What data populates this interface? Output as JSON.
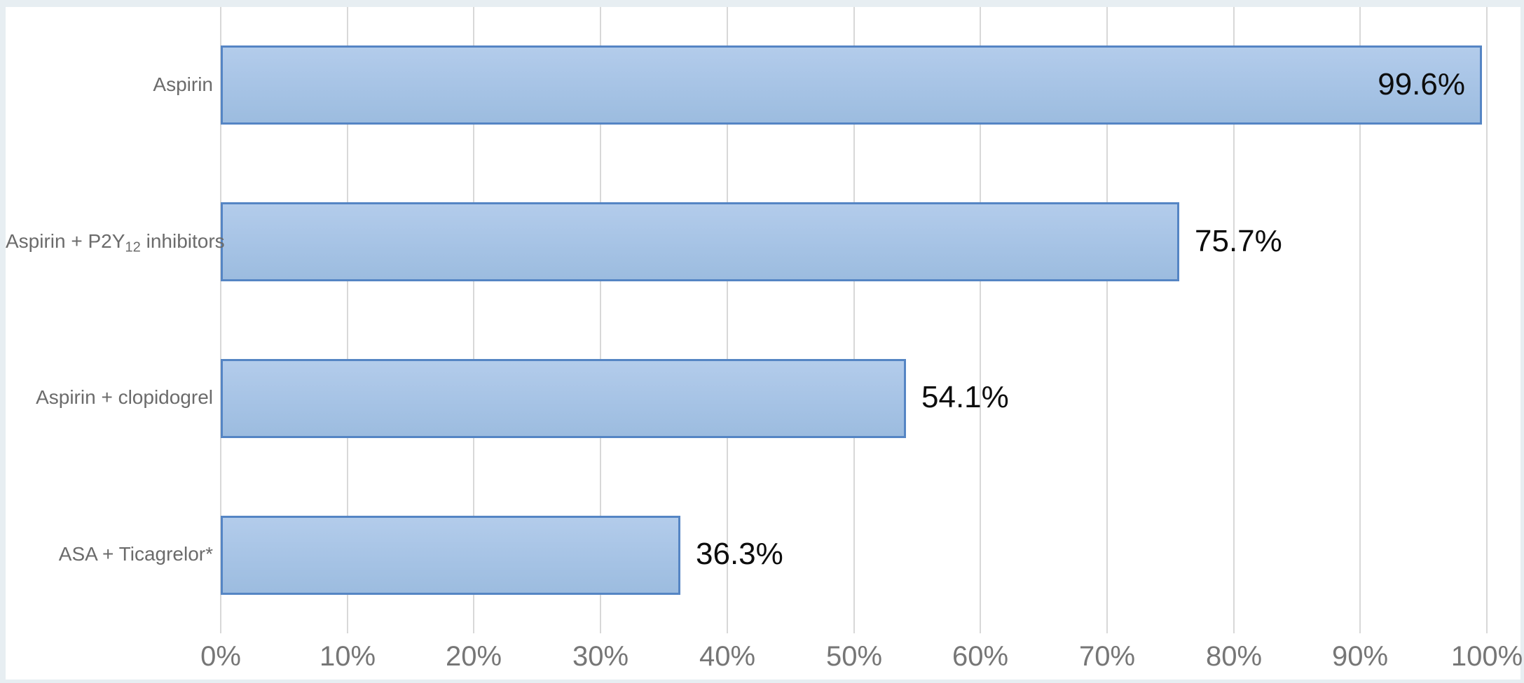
{
  "chart_data": {
    "type": "bar",
    "orientation": "horizontal",
    "title": "",
    "xlabel": "",
    "ylabel": "",
    "xlim": [
      0,
      100
    ],
    "x_tick_labels": [
      "0%",
      "10%",
      "20%",
      "30%",
      "40%",
      "50%",
      "60%",
      "70%",
      "80%",
      "90%",
      "100%"
    ],
    "grid": "vertical-major",
    "legend": "none",
    "categories": [
      "Aspirin",
      "Aspirin + P2Y12 inhibitors",
      "Aspirin + clopidogrel",
      "ASA + Ticagrelor*"
    ],
    "category_rich_labels": [
      [
        {
          "t": "Aspirin"
        }
      ],
      [
        {
          "t": "Aspirin + P2Y"
        },
        {
          "t": "12",
          "sub": true
        },
        {
          "t": " inhibitors"
        }
      ],
      [
        {
          "t": "Aspirin + clopidogrel"
        }
      ],
      [
        {
          "t": "ASA + Ticagrelor*"
        }
      ]
    ],
    "values": [
      99.6,
      75.7,
      54.1,
      36.3
    ],
    "data_labels": [
      "99.6%",
      "75.7%",
      "54.1%",
      "36.3%"
    ],
    "data_label_positions": [
      "inside-end",
      "outside-end",
      "outside-end",
      "outside-end"
    ],
    "colors": {
      "bar_fill_top": "#b3cceb",
      "bar_fill_bottom": "#9cbcdf",
      "bar_border": "#5585c4",
      "gridline": "#d8d8d8",
      "category_label": "#6b6b6b",
      "value_label": "#0d0d0d",
      "axis_label": "#767676",
      "frame": "#e7eef2",
      "plot_background": "#ffffff"
    }
  }
}
